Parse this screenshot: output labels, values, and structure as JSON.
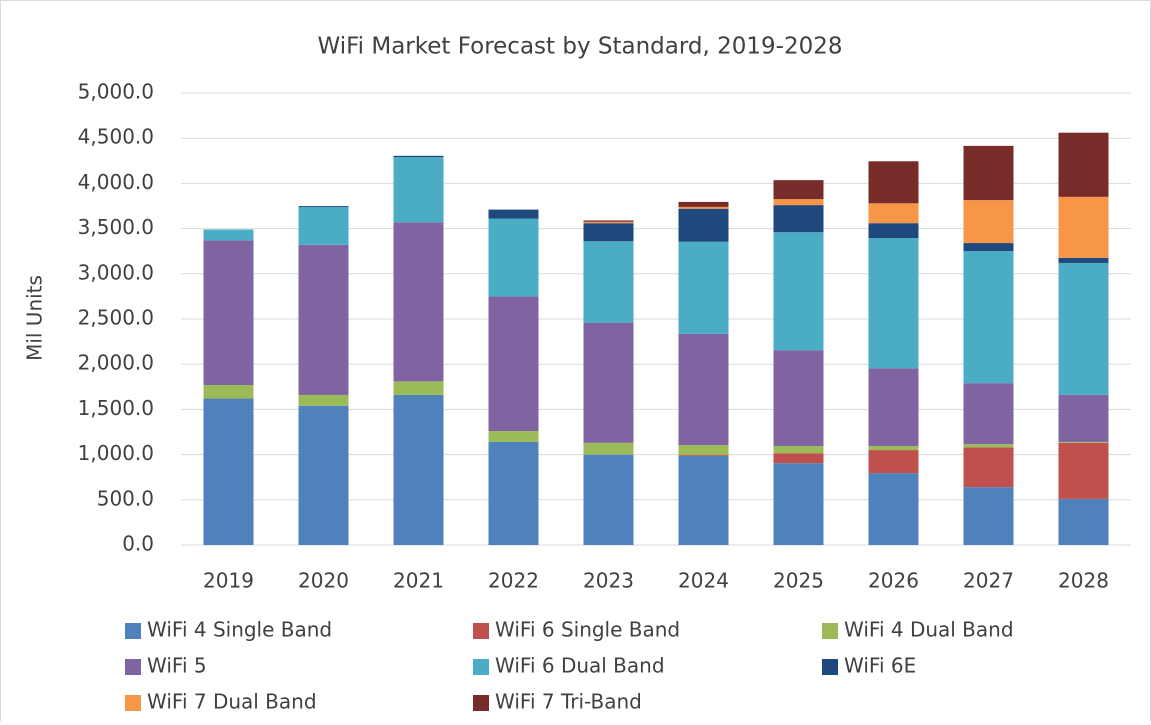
{
  "chart_data": {
    "type": "stacked_bar",
    "title": "WiFi Market Forecast by Standard, 2019-2028",
    "y_label": "Mil Units",
    "categories": [
      "2019",
      "2020",
      "2021",
      "2022",
      "2023",
      "2024",
      "2025",
      "2026",
      "2027",
      "2028"
    ],
    "series": [
      {
        "name": "WiFi 4 Single Band",
        "color": "#4f81bd",
        "values": [
          1620,
          1540,
          1660,
          1140,
          1000,
          985,
          905,
          795,
          640,
          510
        ]
      },
      {
        "name": "WiFi 6 Single Band",
        "color": "#c0504d",
        "values": [
          0,
          0,
          0,
          0,
          0,
          10,
          110,
          255,
          440,
          620
        ]
      },
      {
        "name": "WiFi 4 Dual Band",
        "color": "#9bbb59",
        "values": [
          150,
          120,
          150,
          120,
          130,
          110,
          80,
          45,
          35,
          10
        ]
      },
      {
        "name": "WiFi 5",
        "color": "#8064a2",
        "values": [
          1600,
          1660,
          1760,
          1490,
          1330,
          1230,
          1060,
          860,
          675,
          520
        ]
      },
      {
        "name": "WiFi 6 Dual Band",
        "color": "#4bacc6",
        "values": [
          120,
          420,
          720,
          860,
          900,
          1020,
          1305,
          1440,
          1460,
          1460
        ]
      },
      {
        "name": "WiFi 6E",
        "color": "#1f497d",
        "values": [
          0,
          10,
          15,
          100,
          200,
          365,
          300,
          165,
          90,
          56
        ]
      },
      {
        "name": "WiFi 7 Dual Band",
        "color": "#f79646",
        "values": [
          0,
          0,
          0,
          0,
          15,
          20,
          66,
          220,
          475,
          675
        ]
      },
      {
        "name": "WiFi 7 Tri-Band",
        "color": "#772c2a",
        "values": [
          0,
          0,
          0,
          0,
          15,
          55,
          210,
          465,
          600,
          710
        ]
      }
    ],
    "ylim": [
      0,
      5000
    ],
    "yticks": [
      {
        "value": 0,
        "label": "0.0"
      },
      {
        "value": 500,
        "label": "500.0"
      },
      {
        "value": 1000,
        "label": "1,000.0"
      },
      {
        "value": 1500,
        "label": "1,500.0"
      },
      {
        "value": 2000,
        "label": "2,000.0"
      },
      {
        "value": 2500,
        "label": "2,500.0"
      },
      {
        "value": 3000,
        "label": "3,000.0"
      },
      {
        "value": 3500,
        "label": "3,500.0"
      },
      {
        "value": 4000,
        "label": "4,000.0"
      },
      {
        "value": 4500,
        "label": "4,500.0"
      },
      {
        "value": 5000,
        "label": "5,000.0"
      }
    ],
    "grid": true,
    "legend": "bottom"
  }
}
